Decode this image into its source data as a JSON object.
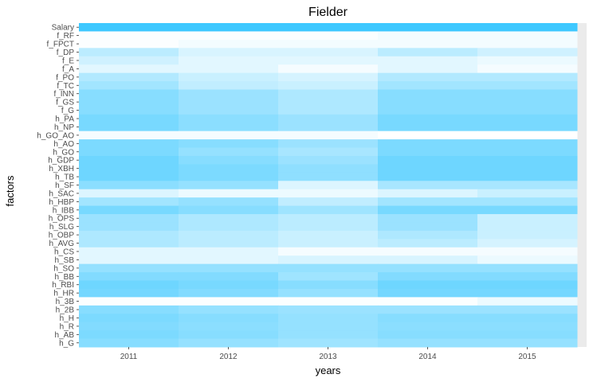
{
  "chart_data": {
    "type": "heatmap",
    "title": "Fielder",
    "xlabel": "years",
    "ylabel": "factors",
    "years": [
      "2011",
      "2012",
      "2013",
      "2014",
      "2015"
    ],
    "factors": [
      "Salary",
      "f_RF",
      "f_FPCT",
      "f_DP",
      "f_E",
      "f_A",
      "f_PO",
      "f_TC",
      "f_INN",
      "f_GS",
      "f_G",
      "h_PA",
      "h_NP",
      "h_GO_AO",
      "h_AO",
      "h_GO",
      "h_GDP",
      "h_XBH",
      "h_TB",
      "h_SF",
      "h_SAC",
      "h_HBP",
      "h_IBB",
      "h_OPS",
      "h_SLG",
      "h_OBP",
      "h_AVG",
      "h_CS",
      "h_SB",
      "h_SO",
      "h_BB",
      "h_RBI",
      "h_HR",
      "h_3B",
      "h_2B",
      "h_H",
      "h_R",
      "h_AB",
      "h_G"
    ],
    "values": [
      [
        1.0,
        1.0,
        1.0,
        1.0,
        1.0
      ],
      [
        0.02,
        0.02,
        0.02,
        0.06,
        0.06
      ],
      [
        0.02,
        0.06,
        0.06,
        0.06,
        0.06
      ],
      [
        0.35,
        0.2,
        0.2,
        0.35,
        0.25
      ],
      [
        0.25,
        0.15,
        0.15,
        0.15,
        0.1
      ],
      [
        0.15,
        0.15,
        0.05,
        0.15,
        0.05
      ],
      [
        0.4,
        0.28,
        0.22,
        0.4,
        0.4
      ],
      [
        0.48,
        0.32,
        0.28,
        0.48,
        0.48
      ],
      [
        0.62,
        0.52,
        0.42,
        0.62,
        0.62
      ],
      [
        0.62,
        0.52,
        0.42,
        0.62,
        0.62
      ],
      [
        0.62,
        0.52,
        0.42,
        0.62,
        0.62
      ],
      [
        0.7,
        0.6,
        0.52,
        0.7,
        0.7
      ],
      [
        0.7,
        0.6,
        0.52,
        0.7,
        0.7
      ],
      [
        0.05,
        0.05,
        0.05,
        0.0,
        0.0
      ],
      [
        0.68,
        0.62,
        0.52,
        0.68,
        0.68
      ],
      [
        0.68,
        0.55,
        0.45,
        0.68,
        0.68
      ],
      [
        0.75,
        0.62,
        0.52,
        0.75,
        0.75
      ],
      [
        0.75,
        0.68,
        0.58,
        0.75,
        0.75
      ],
      [
        0.75,
        0.68,
        0.58,
        0.75,
        0.75
      ],
      [
        0.6,
        0.55,
        0.18,
        0.45,
        0.45
      ],
      [
        0.18,
        0.1,
        0.1,
        0.18,
        0.28
      ],
      [
        0.48,
        0.55,
        0.32,
        0.48,
        0.48
      ],
      [
        0.7,
        0.62,
        0.5,
        0.7,
        0.7
      ],
      [
        0.52,
        0.42,
        0.35,
        0.52,
        0.28
      ],
      [
        0.52,
        0.42,
        0.35,
        0.52,
        0.28
      ],
      [
        0.42,
        0.35,
        0.28,
        0.42,
        0.28
      ],
      [
        0.42,
        0.35,
        0.28,
        0.35,
        0.22
      ],
      [
        0.15,
        0.15,
        0.05,
        0.05,
        0.05
      ],
      [
        0.15,
        0.15,
        0.2,
        0.2,
        0.1
      ],
      [
        0.55,
        0.55,
        0.55,
        0.55,
        0.55
      ],
      [
        0.65,
        0.65,
        0.5,
        0.65,
        0.65
      ],
      [
        0.75,
        0.7,
        0.62,
        0.75,
        0.75
      ],
      [
        0.72,
        0.65,
        0.55,
        0.72,
        0.72
      ],
      [
        0.02,
        0.02,
        0.02,
        0.02,
        0.1
      ],
      [
        0.62,
        0.55,
        0.52,
        0.52,
        0.52
      ],
      [
        0.68,
        0.62,
        0.55,
        0.62,
        0.62
      ],
      [
        0.65,
        0.6,
        0.55,
        0.6,
        0.6
      ],
      [
        0.68,
        0.62,
        0.55,
        0.62,
        0.62
      ],
      [
        0.62,
        0.55,
        0.5,
        0.55,
        0.55
      ]
    ],
    "color_low": "#ffffff",
    "color_high": "#3ec8ff",
    "panel_background": "#ebebeb",
    "grid": false,
    "legend": "none"
  }
}
